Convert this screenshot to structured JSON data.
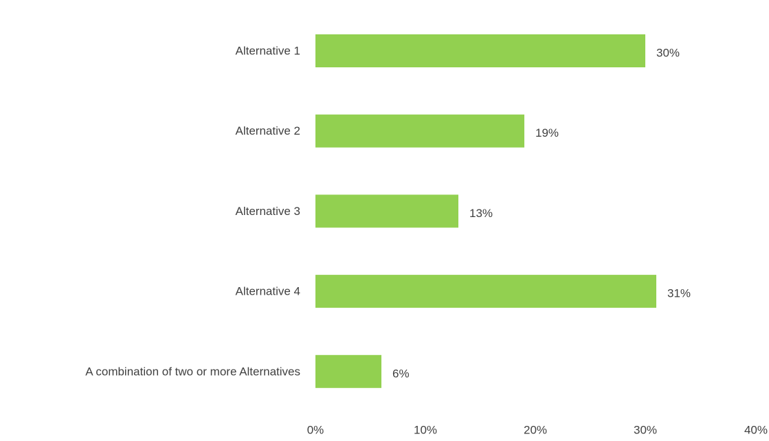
{
  "chart_data": {
    "type": "bar",
    "orientation": "horizontal",
    "categories": [
      "Alternative 1",
      "Alternative 2",
      "Alternative 3",
      "Alternative 4",
      "A combination of two or more Alternatives"
    ],
    "values": [
      30,
      19,
      13,
      31,
      6
    ],
    "data_labels": [
      "30%",
      "19%",
      "13%",
      "31%",
      "6%"
    ],
    "xlim": [
      0,
      40
    ],
    "x_ticks": [
      0,
      10,
      20,
      30,
      40
    ],
    "x_tick_labels": [
      "0%",
      "10%",
      "20%",
      "30%",
      "40%"
    ],
    "title": "",
    "xlabel": "",
    "ylabel": "",
    "grid": false,
    "legend": "none",
    "bar_color": "#92d050",
    "text_color": "#404040"
  }
}
